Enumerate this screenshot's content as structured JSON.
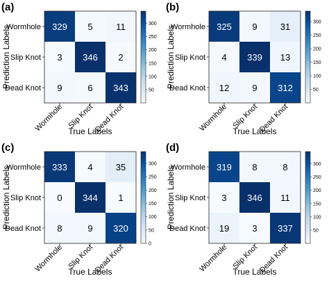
{
  "colormap": {
    "low": "#f7fbff",
    "high": "#08306b",
    "text_light": "#ffffff",
    "text_dark": "#000000"
  },
  "chart_data": [
    {
      "type": "heatmap",
      "panel_label": "(a)",
      "title": "",
      "xlabel": "True Labels",
      "ylabel": "Prediction Labels",
      "x_categories": [
        "Wormhole",
        "Slip Knot",
        "Dead Knot"
      ],
      "y_categories": [
        "Wormhole",
        "Slip Knot",
        "Dead Knot"
      ],
      "values": [
        [
          329,
          5,
          11
        ],
        [
          3,
          346,
          2
        ],
        [
          9,
          6,
          343
        ]
      ],
      "colorbar": {
        "min": 0,
        "max": 346,
        "ticks": [
          50,
          100,
          150,
          200,
          250,
          300
        ]
      }
    },
    {
      "type": "heatmap",
      "panel_label": "(b)",
      "title": "",
      "xlabel": "True Labels",
      "ylabel": "Prediction Labels",
      "x_categories": [
        "Wormhole",
        "Slip Knot",
        "Dead Knot"
      ],
      "y_categories": [
        "Wormhole",
        "Slip Knot",
        "Dead Knot"
      ],
      "values": [
        [
          325,
          9,
          31
        ],
        [
          4,
          339,
          13
        ],
        [
          12,
          9,
          312
        ]
      ],
      "colorbar": {
        "min": 0,
        "max": 339,
        "ticks": [
          50,
          100,
          150,
          200,
          250,
          300
        ]
      }
    },
    {
      "type": "heatmap",
      "panel_label": "(c)",
      "title": "",
      "xlabel": "True Labels",
      "ylabel": "Prediction Labels",
      "x_categories": [
        "Wormhole",
        "Slip Knot",
        "Dead Knot"
      ],
      "y_categories": [
        "Wormhole",
        "Slip Knot",
        "Dead Knot"
      ],
      "values": [
        [
          333,
          4,
          35
        ],
        [
          0,
          344,
          1
        ],
        [
          8,
          9,
          320
        ]
      ],
      "colorbar": {
        "min": 0,
        "max": 344,
        "ticks": [
          0,
          50,
          100,
          150,
          200,
          250,
          300
        ]
      }
    },
    {
      "type": "heatmap",
      "panel_label": "(d)",
      "title": "",
      "xlabel": "True Labels",
      "ylabel": "Prediction Labels",
      "x_categories": [
        "Wormhole",
        "Slip Knot",
        "Dead Knot"
      ],
      "y_categories": [
        "Wormhole",
        "Slip Knot",
        "Dead Knot"
      ],
      "values": [
        [
          319,
          8,
          8
        ],
        [
          3,
          346,
          11
        ],
        [
          19,
          3,
          337
        ]
      ],
      "colorbar": {
        "min": 0,
        "max": 346,
        "ticks": [
          50,
          100,
          150,
          200,
          250,
          300
        ]
      }
    }
  ]
}
